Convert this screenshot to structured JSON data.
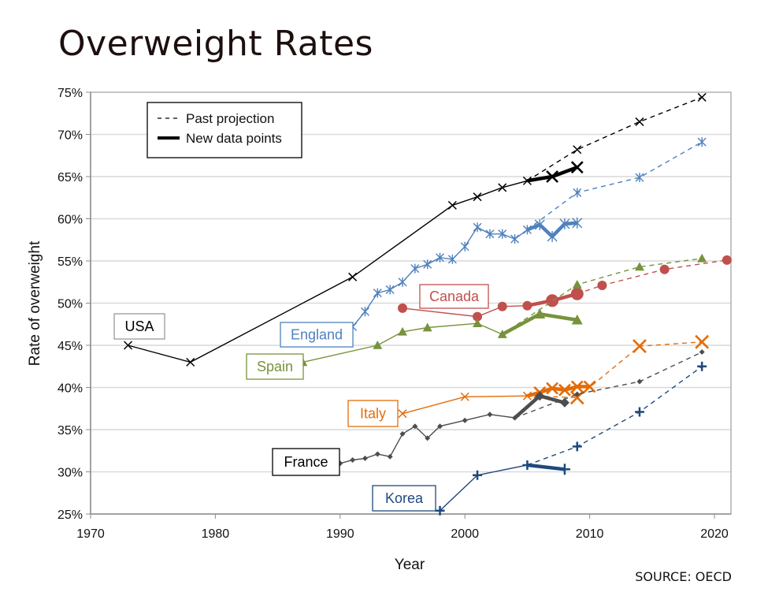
{
  "title": "Overweight Rates",
  "source": "SOURCE: OECD",
  "chart_data": {
    "type": "line",
    "title": "Overweight Rates",
    "xlabel": "Year",
    "ylabel": "Rate of overweight",
    "xlim": [
      1970,
      2022
    ],
    "ylim": [
      25,
      75
    ],
    "x_ticks": [
      1970,
      1980,
      1990,
      2000,
      2010,
      2020
    ],
    "x_tick_labels": [
      "1970",
      "1980",
      "1990",
      "2000",
      "2010",
      "2020"
    ],
    "y_ticks": [
      25,
      30,
      35,
      40,
      45,
      50,
      55,
      60,
      65,
      70,
      75
    ],
    "y_tick_labels": [
      "25%",
      "30%",
      "35%",
      "40%",
      "45%",
      "50%",
      "55%",
      "60%",
      "65%",
      "70%",
      "75%"
    ],
    "grid": "horizontal",
    "legend": {
      "placement": "top-left",
      "entries": [
        {
          "label": "Past projection",
          "style": "dashed"
        },
        {
          "label": "New data points",
          "style": "thick"
        }
      ]
    },
    "series": [
      {
        "name": "USA",
        "label": "USA",
        "color": "#000000",
        "label_border": "#999999",
        "marker": "x",
        "historical": [
          [
            1973,
            45.0
          ],
          [
            1978,
            43.0
          ],
          [
            1991,
            53.1
          ],
          [
            1999,
            61.6
          ],
          [
            2001,
            62.6
          ],
          [
            2003,
            63.7
          ],
          [
            2005,
            64.5
          ]
        ],
        "projection": [
          [
            2005,
            64.5
          ],
          [
            2009,
            68.2
          ],
          [
            2014,
            71.5
          ],
          [
            2019,
            74.4
          ]
        ],
        "new_data": [
          [
            2005,
            64.5
          ],
          [
            2007,
            65.0
          ],
          [
            2009,
            66.1
          ]
        ]
      },
      {
        "name": "England",
        "label": "England",
        "color": "#4f81bd",
        "label_border": "#4f81bd",
        "marker": "asterisk",
        "historical": [
          [
            1991,
            47.2
          ],
          [
            1992,
            49.0
          ],
          [
            1993,
            51.2
          ],
          [
            1994,
            51.6
          ],
          [
            1995,
            52.5
          ],
          [
            1996,
            54.1
          ],
          [
            1997,
            54.6
          ],
          [
            1998,
            55.4
          ],
          [
            1999,
            55.2
          ],
          [
            2000,
            56.7
          ],
          [
            2001,
            59.0
          ],
          [
            2002,
            58.2
          ],
          [
            2003,
            58.2
          ],
          [
            2004,
            57.6
          ],
          [
            2005,
            58.7
          ]
        ],
        "projection": [
          [
            2005,
            58.7
          ],
          [
            2009,
            63.1
          ],
          [
            2014,
            64.9
          ],
          [
            2019,
            69.1
          ]
        ],
        "new_data": [
          [
            2005,
            58.7
          ],
          [
            2006,
            59.3
          ],
          [
            2007,
            57.9
          ],
          [
            2008,
            59.4
          ],
          [
            2009,
            59.5
          ]
        ]
      },
      {
        "name": "Canada",
        "label": "Canada",
        "color": "#c0504d",
        "label_border": "#c0504d",
        "marker": "circle",
        "historical": [
          [
            1995,
            49.4
          ],
          [
            2001,
            48.4
          ],
          [
            2003,
            49.6
          ],
          [
            2005,
            49.7
          ]
        ],
        "projection": [
          [
            2009,
            51.1
          ],
          [
            2011,
            52.1
          ],
          [
            2016,
            54.0
          ],
          [
            2021,
            55.1
          ]
        ],
        "new_data": [
          [
            2005,
            49.7
          ],
          [
            2007,
            50.3
          ],
          [
            2009,
            51.1
          ]
        ]
      },
      {
        "name": "Spain",
        "label": "Spain",
        "color": "#77933c",
        "label_border": "#77933c",
        "marker": "triangle",
        "historical": [
          [
            1987,
            43.0
          ],
          [
            1993,
            45.0
          ],
          [
            1995,
            46.6
          ],
          [
            1997,
            47.1
          ],
          [
            2001,
            47.6
          ],
          [
            2003,
            46.3
          ]
        ],
        "projection": [
          [
            2003,
            46.3
          ],
          [
            2009,
            52.2
          ],
          [
            2014,
            54.3
          ],
          [
            2019,
            55.3
          ]
        ],
        "new_data": [
          [
            2003,
            46.3
          ],
          [
            2006,
            48.7
          ],
          [
            2009,
            48.0
          ]
        ]
      },
      {
        "name": "Italy",
        "label": "Italy",
        "color": "#e36c09",
        "label_border": "#e36c09",
        "marker": "x",
        "historical": [
          [
            1995,
            36.9
          ],
          [
            2000,
            38.9
          ],
          [
            2005,
            39.0
          ]
        ],
        "projection": [
          [
            2005,
            39.0
          ],
          [
            2009,
            38.8
          ],
          [
            2014,
            44.9
          ],
          [
            2019,
            45.4
          ]
        ],
        "new_data": [
          [
            2005,
            39.0
          ],
          [
            2006,
            39.4
          ],
          [
            2007,
            39.9
          ],
          [
            2008,
            39.7
          ],
          [
            2009,
            40.1
          ],
          [
            2010,
            40.1
          ]
        ]
      },
      {
        "name": "France",
        "label": "France",
        "color": "#4d4d4d",
        "label_border": "#000000",
        "marker": "diamond",
        "historical": [
          [
            1990,
            31.0
          ],
          [
            1991,
            31.4
          ],
          [
            1992,
            31.6
          ],
          [
            1993,
            32.1
          ],
          [
            1994,
            31.8
          ],
          [
            1995,
            34.5
          ],
          [
            1996,
            35.4
          ],
          [
            1997,
            34.0
          ],
          [
            1998,
            35.4
          ],
          [
            2000,
            36.1
          ],
          [
            2002,
            36.8
          ],
          [
            2004,
            36.4
          ]
        ],
        "projection": [
          [
            2004,
            36.4
          ],
          [
            2009,
            39.2
          ],
          [
            2014,
            40.7
          ],
          [
            2019,
            44.2
          ]
        ],
        "new_data": [
          [
            2004,
            36.4
          ],
          [
            2006,
            39.0
          ],
          [
            2008,
            38.2
          ]
        ]
      },
      {
        "name": "Korea",
        "label": "Korea",
        "color": "#1f497d",
        "label_border": "#1f497d",
        "marker": "plus",
        "historical": [
          [
            1998,
            25.4
          ],
          [
            2001,
            29.6
          ],
          [
            2005,
            30.8
          ]
        ],
        "projection": [
          [
            2005,
            30.8
          ],
          [
            2009,
            33.0
          ],
          [
            2014,
            37.1
          ],
          [
            2019,
            42.5
          ]
        ],
        "new_data": [
          [
            2005,
            30.8
          ],
          [
            2008,
            30.3
          ]
        ]
      }
    ]
  }
}
